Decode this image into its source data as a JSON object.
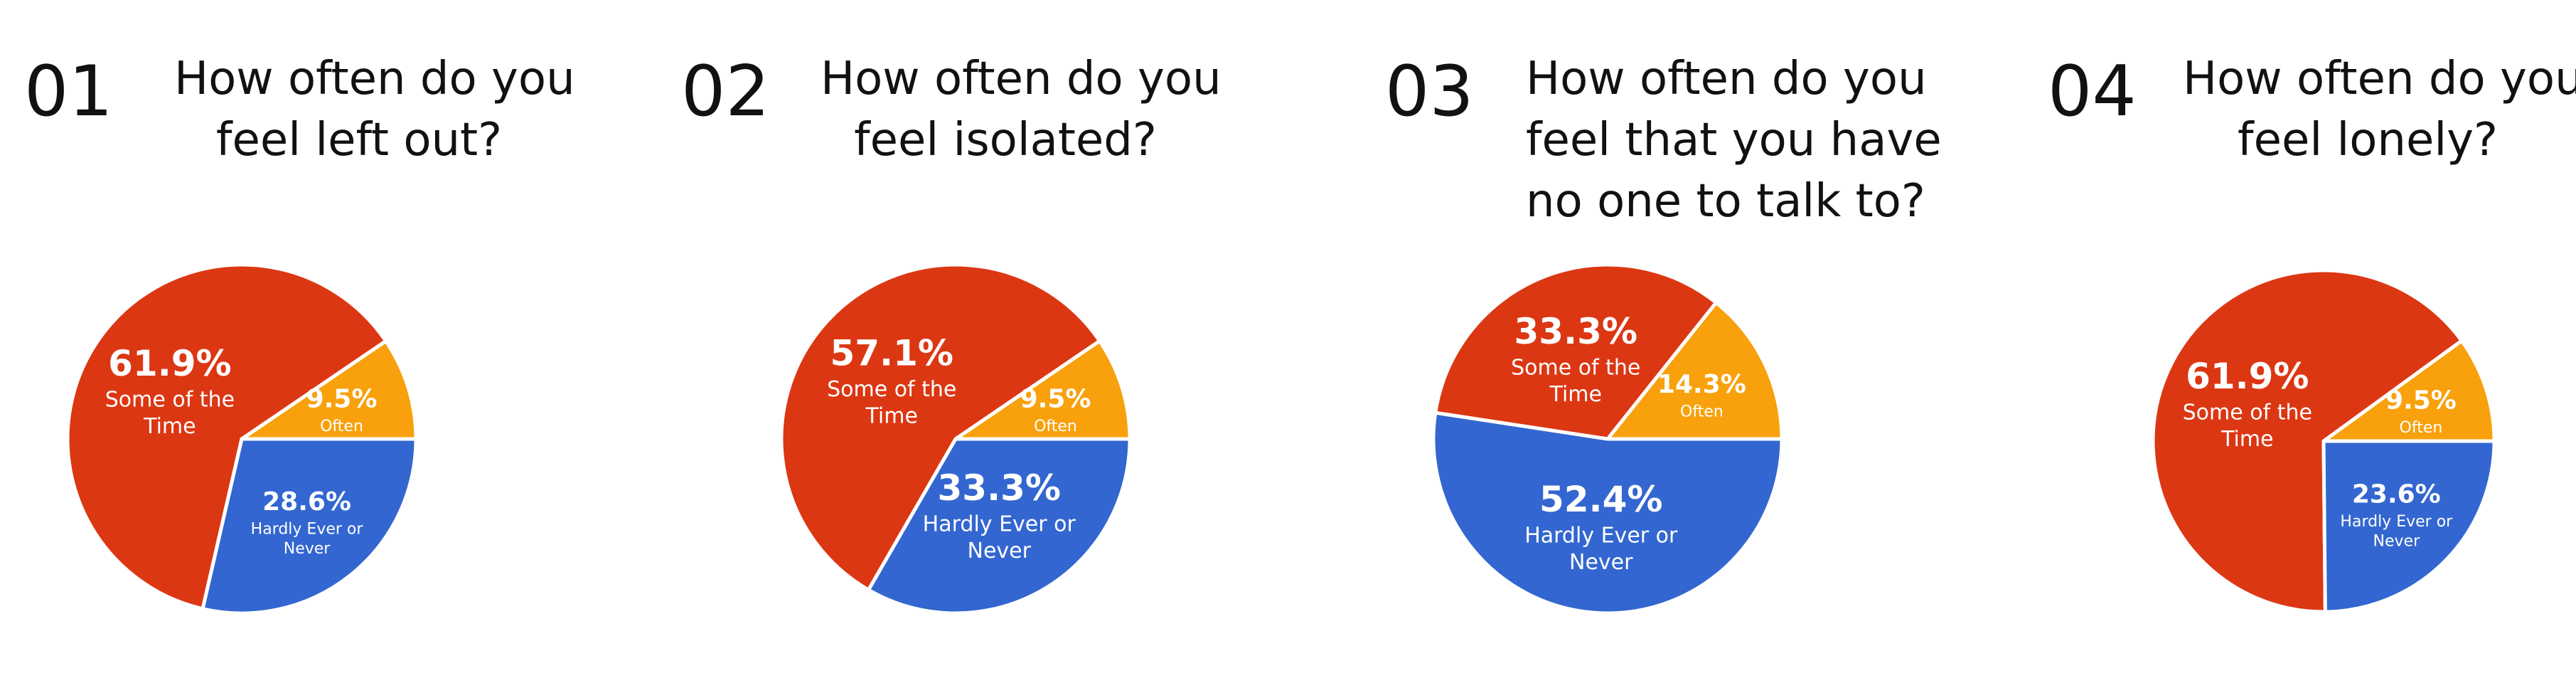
{
  "chart_data": [
    {
      "type": "pie",
      "number": "01",
      "question_lines": [
        "How often do you",
        "feel left out?"
      ],
      "slices": [
        {
          "label": "Often",
          "value": 9.5,
          "pct_label": "9.5%",
          "color": "#f8a10c"
        },
        {
          "label": "Hardly Ever or Never",
          "value": 28.6,
          "pct_label": "28.6%",
          "color": "#3366d0"
        },
        {
          "label": "Some of the Time",
          "value": 61.9,
          "pct_label": "61.9%",
          "color": "#dc3713"
        }
      ]
    },
    {
      "type": "pie",
      "number": "02",
      "question_lines": [
        "How often do you",
        "feel isolated?"
      ],
      "slices": [
        {
          "label": "Often",
          "value": 9.5,
          "pct_label": "9.5%",
          "color": "#f8a10c"
        },
        {
          "label": "Hardly Ever or Never",
          "value": 33.3,
          "pct_label": "33.3%",
          "color": "#3366d0"
        },
        {
          "label": "Some of the Time",
          "value": 57.1,
          "pct_label": "57.1%",
          "color": "#dc3713"
        }
      ]
    },
    {
      "type": "pie",
      "number": "03",
      "question_lines": [
        "How often do you",
        "feel that you have",
        "no one to talk to?"
      ],
      "slices": [
        {
          "label": "Often",
          "value": 14.3,
          "pct_label": "14.3%",
          "color": "#f8a10c"
        },
        {
          "label": "Hardly Ever or Never",
          "value": 52.4,
          "pct_label": "52.4%",
          "color": "#3366d0"
        },
        {
          "label": "Some of the Time",
          "value": 33.3,
          "pct_label": "33.3%",
          "color": "#dc3713"
        }
      ]
    },
    {
      "type": "pie",
      "number": "04",
      "question_lines": [
        "How often do you",
        "feel lonely?"
      ],
      "slices": [
        {
          "label": "Often",
          "value": 9.5,
          "pct_label": "9.5%",
          "color": "#f8a10c"
        },
        {
          "label": "Hardly Ever or Never",
          "value": 23.6,
          "pct_label": "23.6%",
          "color": "#3366d0"
        },
        {
          "label": "Some of the Time",
          "value": 61.9,
          "pct_label": "61.9%",
          "color": "#dc3713"
        }
      ]
    }
  ]
}
